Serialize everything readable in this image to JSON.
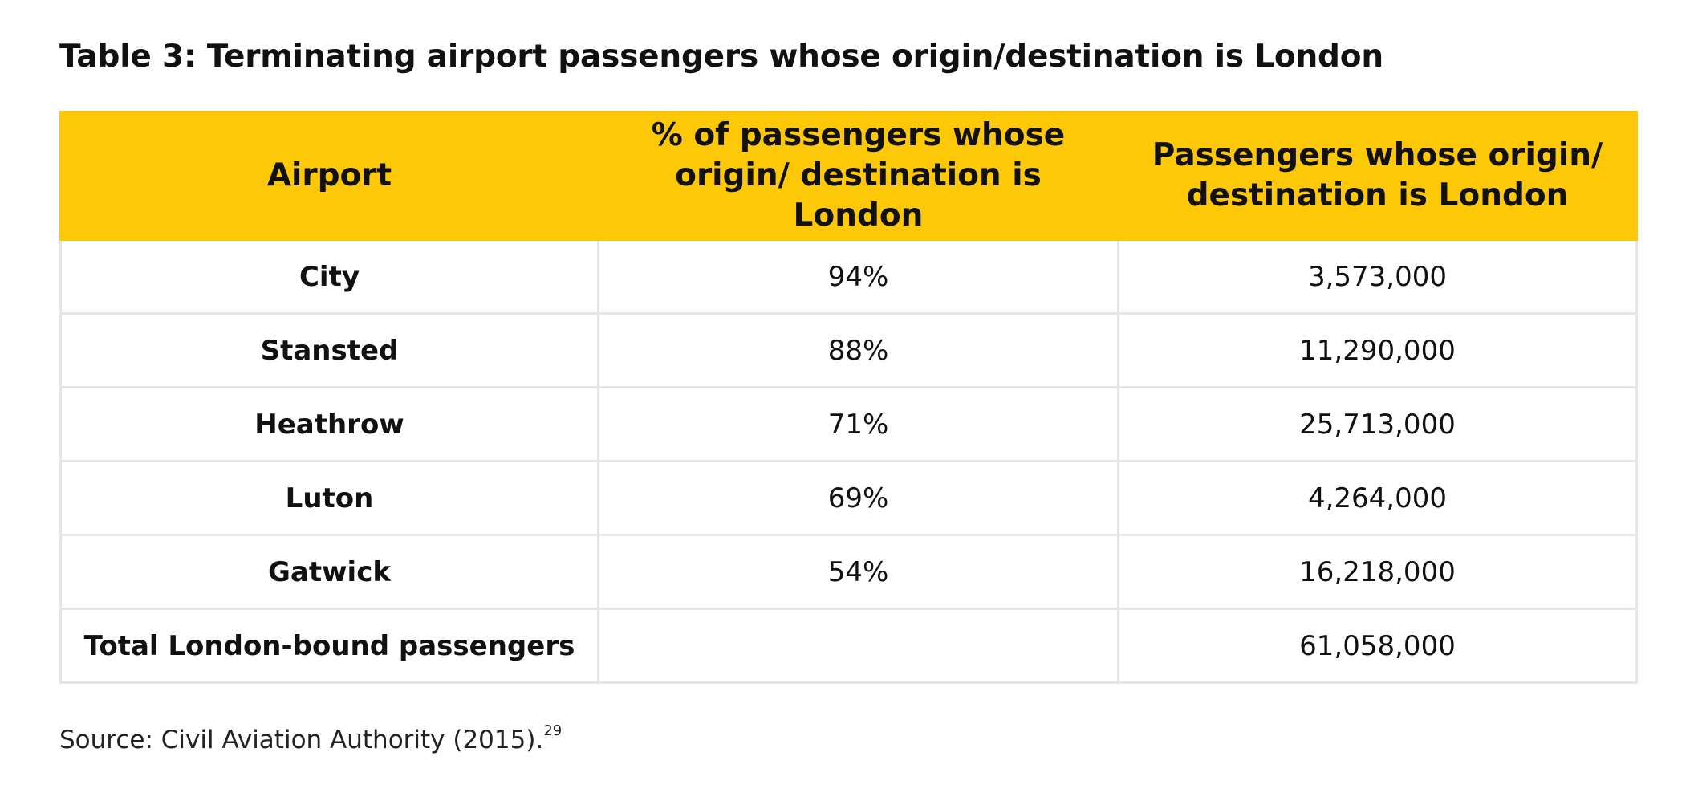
{
  "title": "Table 3: Terminating airport passengers whose origin/destination is London",
  "table": {
    "headers": [
      "Airport",
      "% of passengers whose origin/ destination is London",
      "Passengers whose origin/ destination is London"
    ],
    "rows": [
      {
        "airport": "City",
        "percent": "94%",
        "passengers": "3,573,000"
      },
      {
        "airport": "Stansted",
        "percent": "88%",
        "passengers": "11,290,000"
      },
      {
        "airport": "Heathrow",
        "percent": "71%",
        "passengers": "25,713,000"
      },
      {
        "airport": "Luton",
        "percent": "69%",
        "passengers": "4,264,000"
      },
      {
        "airport": "Gatwick",
        "percent": "54%",
        "passengers": "16,218,000"
      },
      {
        "airport": "Total London-bound passengers",
        "percent": "",
        "passengers": "61,058,000"
      }
    ]
  },
  "source": {
    "text": "Source: Civil Aviation Authority (2015).",
    "footnote": "29"
  },
  "colors": {
    "header_background": "#fcc808",
    "grid_lines": "#e6e6e6"
  }
}
